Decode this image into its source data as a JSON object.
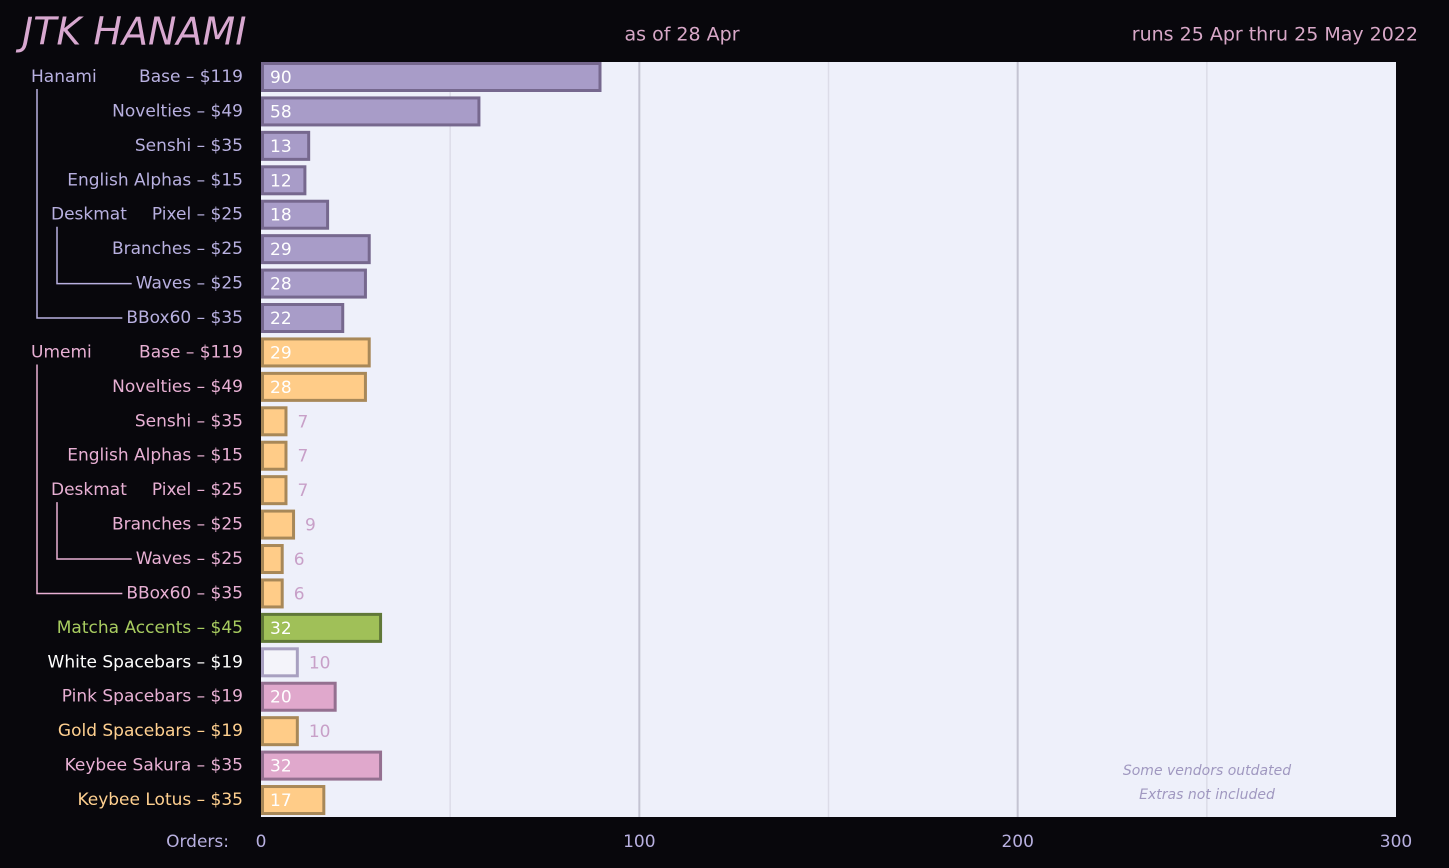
{
  "chart_data": {
    "type": "bar",
    "title": "JTK HANAMI",
    "subtitle": "as of 28 Apr",
    "date_range": "runs 25 Apr thru 25 May 2022",
    "x_label": "Orders:",
    "categories": [
      "Base – $119",
      "Novelties – $49",
      "Senshi – $35",
      "English Alphas – $15",
      "Pixel – $25",
      "Branches – $25",
      "Waves – $25",
      "BBox60 – $35",
      "Base – $119",
      "Novelties – $49",
      "Senshi – $35",
      "English Alphas – $15",
      "Pixel – $25",
      "Branches – $25",
      "Waves – $25",
      "BBox60 – $35",
      "Matcha Accents – $45",
      "White Spacebars – $19",
      "Pink Spacebars – $19",
      "Gold Spacebars – $19",
      "Keybee Sakura – $35",
      "Keybee Lotus – $35"
    ],
    "values": [
      90,
      58,
      13,
      12,
      18,
      29,
      28,
      22,
      29,
      28,
      7,
      7,
      7,
      9,
      6,
      6,
      32,
      10,
      20,
      10,
      32,
      17
    ],
    "bar_colors": [
      "#a89cc8",
      "#a89cc8",
      "#a89cc8",
      "#a89cc8",
      "#a89cc8",
      "#a89cc8",
      "#a89cc8",
      "#a89cc8",
      "#ffcc88",
      "#ffcc88",
      "#ffcc88",
      "#ffcc88",
      "#ffcc88",
      "#ffcc88",
      "#ffcc88",
      "#ffcc88",
      "#a0c058",
      "#f4f4fa",
      "#e0a8cc",
      "#ffcc88",
      "#e0a8cc",
      "#ffcc88"
    ],
    "border_colors": [
      "#76688e",
      "#76688e",
      "#76688e",
      "#76688e",
      "#76688e",
      "#76688e",
      "#76688e",
      "#76688e",
      "#a88858",
      "#a88858",
      "#a88858",
      "#a88858",
      "#a88858",
      "#a88858",
      "#a88858",
      "#a88858",
      "#607838",
      "#a8a0c0",
      "#947090",
      "#a88858",
      "#947090",
      "#a88858"
    ],
    "text_colors": [
      "#b8b0e0",
      "#b8b0e0",
      "#b8b0e0",
      "#b8b0e0",
      "#b8b0e0",
      "#b8b0e0",
      "#b8b0e0",
      "#b8b0e0",
      "#e8b0d4",
      "#e8b0d4",
      "#e8b0d4",
      "#e8b0d4",
      "#e8b0d4",
      "#e8b0d4",
      "#e8b0d4",
      "#e8b0d4",
      "#a8cc60",
      "#ffffff",
      "#e8b0d4",
      "#ffd090",
      "#e8b0d4",
      "#ffd090"
    ],
    "row_groups": [
      {
        "label": "Hanami",
        "start": 0,
        "end": 7
      },
      {
        "label": "Deskmat",
        "start": 4,
        "end": 6
      },
      {
        "label": "Umemi",
        "start": 8,
        "end": 15
      },
      {
        "label": "Deskmat",
        "start": 12,
        "end": 14
      }
    ],
    "xlim": [
      0,
      300
    ],
    "xticks": [
      0,
      100,
      200,
      300
    ],
    "minor_xticks": [
      50,
      150,
      250
    ],
    "grid": true,
    "annotations": [
      "Some vendors outdated",
      "Extras not included"
    ]
  }
}
